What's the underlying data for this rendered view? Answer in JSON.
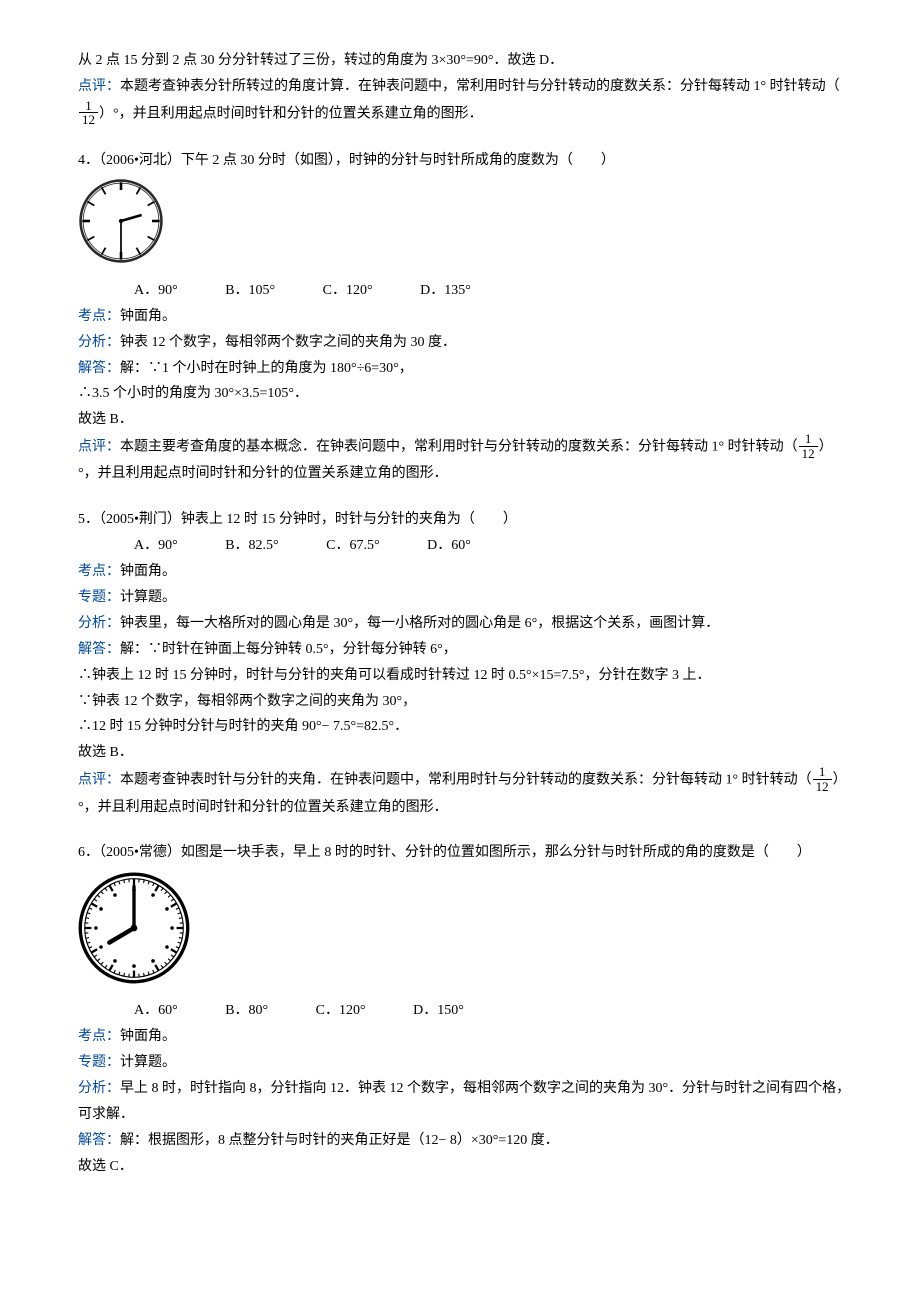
{
  "intro": {
    "line1": "从 2 点 15 分到 2 点 30 分分针转过了三份，转过的角度为 3×30°=90°．故选 D．",
    "review_label": "点评：",
    "review_part1": "本题考查钟表分针所转过的角度计算．在钟表问题中，常利用时针与分针转动的度数关系：分针每转动 1° 时针转动（",
    "review_part2": "）°，并且利用起点时间时针和分针的位置关系建立角的图形．"
  },
  "q4": {
    "stem": "4．（2006•河北）下午 2 点 30 分时（如图），时钟的分针与时针所成角的度数为（　　）",
    "opts": {
      "a": "A．90°",
      "b": "B．105°",
      "c": "C．120°",
      "d": "D．135°"
    },
    "kd_label": "考点：",
    "kd": "钟面角。",
    "fx_label": "分析：",
    "fx": "钟表 12 个数字，每相邻两个数字之间的夹角为 30 度．",
    "jd_label": "解答：",
    "jd1": "解：∵1 个小时在时钟上的角度为 180°÷6=30°，",
    "jd2": "∴3.5 个小时的角度为 30°×3.5=105°．",
    "jd3": "故选 B．",
    "dp_label": "点评：",
    "dp_p1": "本题主要考查角度的基本概念．在钟表问题中，常利用时针与分针转动的度数关系：分针每转动 1° 时针转动（",
    "dp_p2": "）°，并且利用起点时间时针和分针的位置关系建立角的图形．",
    "clock": {
      "border_color": "#2a2a2a",
      "face_color": "#ffffff",
      "hour_angle": -105,
      "minute_angle": 90
    }
  },
  "q5": {
    "stem": "5．（2005•荆门）钟表上 12 时 15 分钟时，时针与分针的夹角为（　　）",
    "opts": {
      "a": "A．90°",
      "b": "B．82.5°",
      "c": "C．67.5°",
      "d": "D．60°"
    },
    "kd_label": "考点：",
    "kd": "钟面角。",
    "zt_label": "专题：",
    "zt": "计算题。",
    "fx_label": "分析：",
    "fx": "钟表里，每一大格所对的圆心角是 30°，每一小格所对的圆心角是 6°，根据这个关系，画图计算．",
    "jd_label": "解答：",
    "jd1": "解：∵时针在钟面上每分钟转 0.5°，分针每分钟转 6°，",
    "jd2": "∴钟表上 12 时 15 分钟时，时针与分针的夹角可以看成时针转过 12 时 0.5°×15=7.5°，分针在数字 3 上．",
    "jd3": "∵钟表 12 个数字，每相邻两个数字之间的夹角为 30°，",
    "jd4": "∴12 时 15 分钟时分针与时针的夹角 90°− 7.5°=82.5°．",
    "jd5": "故选 B．",
    "dp_label": "点评：",
    "dp_p1": "本题考查钟表时针与分针的夹角．在钟表问题中，常利用时针与分针转动的度数关系：分针每转动 1° 时针转动（",
    "dp_p2": "）°，并且利用起点时间时针和分针的位置关系建立角的图形．"
  },
  "q6": {
    "stem": "6．（2005•常德）如图是一块手表，早上 8 时的时针、分针的位置如图所示，那么分针与时针所成的角的度数是（　　）",
    "opts": {
      "a": "A．60°",
      "b": "B．80°",
      "c": "C．120°",
      "d": "D．150°"
    },
    "kd_label": "考点：",
    "kd": "钟面角。",
    "zt_label": "专题：",
    "zt": "计算题。",
    "fx_label": "分析：",
    "fx": "早上 8 时，时针指向 8，分针指向 12．钟表 12 个数字，每相邻两个数字之间的夹角为 30°．分针与时针之间有四个格，可求解．",
    "jd_label": "解答：",
    "jd1": "解：根据图形，8 点整分针与时针的夹角正好是（12− 8）×30°=120 度．",
    "jd2": "故选 C．",
    "clock": {
      "border_color": "#000000",
      "face_color": "#ffffff",
      "hour_angle": 30,
      "minute_angle": -90
    }
  },
  "frac": {
    "num": "1",
    "den": "12"
  }
}
